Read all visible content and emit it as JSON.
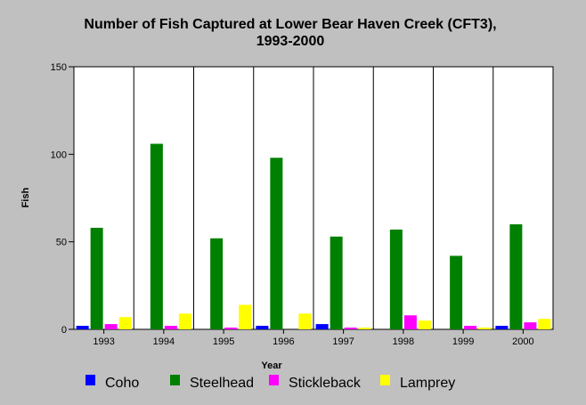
{
  "chart_data": {
    "type": "bar",
    "title": [
      "Number of Fish Captured at Lower Bear Haven Creek (CFT3),",
      "1993-2000"
    ],
    "xlabel": "Year",
    "ylabel": "Fish",
    "ylim": [
      0,
      150
    ],
    "yticks": [
      0,
      50,
      100,
      150
    ],
    "grid": "vertical lines between years",
    "legend_position": "bottom",
    "categories": [
      "1993",
      "1994",
      "1995",
      "1996",
      "1997",
      "1998",
      "1999",
      "2000"
    ],
    "series": [
      {
        "name": "Coho",
        "color": "#0000ff",
        "values": [
          2,
          0,
          0,
          2,
          3,
          0,
          0,
          2
        ]
      },
      {
        "name": "Steelhead",
        "color": "#008000",
        "values": [
          58,
          106,
          52,
          98,
          53,
          57,
          42,
          60
        ]
      },
      {
        "name": "Stickleback",
        "color": "#ff00ff",
        "values": [
          3,
          2,
          1,
          0,
          1,
          8,
          2,
          4
        ]
      },
      {
        "name": "Lamprey",
        "color": "#ffff00",
        "values": [
          7,
          9,
          14,
          9,
          1,
          5,
          1,
          6
        ]
      }
    ],
    "background_color": "#c0c0c0",
    "plot_color": "#ffffff"
  }
}
